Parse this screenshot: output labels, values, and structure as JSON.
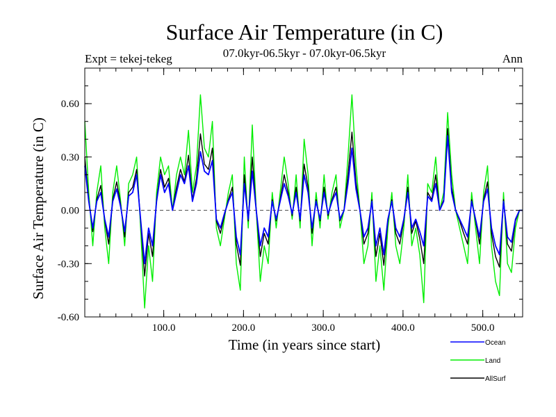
{
  "chart_data": {
    "type": "line",
    "title": "Surface Air Temperature (in C)",
    "subtitle_left": "Expt = tekej-tekeg",
    "subtitle_center": "07.0kyr-06.5kyr - 07.0kyr-06.5kyr",
    "subtitle_right": "Ann",
    "xlabel": "Time (in years since start)",
    "ylabel": "Surface Air Temperature (in C)",
    "xlim": [
      1,
      550
    ],
    "ylim": [
      -0.6,
      0.8
    ],
    "x_ticks": [
      100,
      200,
      300,
      400,
      500
    ],
    "x_tick_labels": [
      "100.0",
      "200.0",
      "300.0",
      "400.0",
      "500.0"
    ],
    "y_ticks": [
      -0.6,
      -0.3,
      0.0,
      0.3,
      0.6
    ],
    "y_tick_labels": [
      "-0.60",
      "-0.30",
      "0.00",
      "0.30",
      "0.60"
    ],
    "zero_line": true,
    "legend_position": "bottom-right",
    "series": [
      {
        "name": "Ocean",
        "color": "#0000ff",
        "x_start": 1,
        "x_step": 5,
        "values": [
          0.25,
          0.05,
          -0.1,
          0.05,
          0.1,
          -0.05,
          -0.15,
          0.05,
          0.12,
          0.02,
          -0.12,
          0.08,
          0.1,
          0.2,
          -0.05,
          -0.3,
          -0.1,
          -0.2,
          0.05,
          0.2,
          0.1,
          0.15,
          0.0,
          0.1,
          0.2,
          0.15,
          0.25,
          0.05,
          0.15,
          0.33,
          0.22,
          0.2,
          0.28,
          -0.05,
          -0.1,
          -0.02,
          0.05,
          0.1,
          -0.15,
          -0.25,
          0.15,
          -0.05,
          0.22,
          0.0,
          -0.2,
          -0.1,
          -0.15,
          0.05,
          -0.05,
          0.05,
          0.15,
          0.08,
          -0.02,
          0.1,
          -0.05,
          0.2,
          0.1,
          -0.1,
          0.05,
          -0.05,
          0.1,
          -0.02,
          0.05,
          0.1,
          -0.05,
          0.0,
          0.15,
          0.35,
          0.12,
          0.0,
          -0.15,
          -0.1,
          0.05,
          -0.2,
          -0.1,
          -0.25,
          -0.05,
          0.05,
          -0.1,
          -0.15,
          -0.05,
          0.1,
          -0.1,
          -0.05,
          -0.12,
          -0.2,
          0.08,
          0.05,
          0.15,
          0.0,
          0.05,
          0.42,
          0.1,
          0.0,
          -0.05,
          -0.1,
          -0.15,
          0.05,
          -0.05,
          -0.15,
          0.05,
          0.12,
          -0.1,
          -0.2,
          -0.25,
          0.05,
          -0.15,
          -0.18,
          -0.05,
          0.0,
          0.0
        ]
      },
      {
        "name": "Land",
        "color": "#00ee00",
        "x_start": 1,
        "x_step": 5,
        "values": [
          0.5,
          0.1,
          -0.2,
          0.1,
          0.25,
          -0.1,
          -0.3,
          0.1,
          0.25,
          0.05,
          -0.2,
          0.15,
          0.2,
          0.3,
          -0.1,
          -0.55,
          -0.2,
          -0.4,
          0.1,
          0.3,
          0.2,
          0.25,
          0.0,
          0.2,
          0.3,
          0.2,
          0.45,
          0.1,
          0.25,
          0.65,
          0.35,
          0.3,
          0.5,
          -0.1,
          -0.2,
          -0.05,
          0.1,
          0.2,
          -0.3,
          -0.45,
          0.3,
          -0.1,
          0.48,
          0.0,
          -0.4,
          -0.2,
          -0.3,
          0.1,
          -0.1,
          0.1,
          0.3,
          0.15,
          -0.05,
          0.2,
          -0.1,
          0.4,
          0.2,
          -0.2,
          0.1,
          -0.1,
          0.2,
          -0.05,
          0.1,
          0.2,
          -0.1,
          0.0,
          0.3,
          0.65,
          0.25,
          0.0,
          -0.3,
          -0.2,
          0.1,
          -0.4,
          -0.2,
          -0.45,
          -0.1,
          0.1,
          -0.2,
          -0.3,
          -0.1,
          0.2,
          -0.2,
          -0.1,
          -0.25,
          -0.52,
          0.15,
          0.1,
          0.3,
          0.0,
          0.1,
          0.55,
          0.2,
          0.0,
          -0.1,
          -0.2,
          -0.3,
          0.1,
          -0.1,
          -0.3,
          0.1,
          0.25,
          -0.2,
          -0.4,
          -0.48,
          0.1,
          -0.3,
          -0.35,
          -0.1,
          0.0,
          0.0
        ]
      },
      {
        "name": "AllSurf",
        "color": "#000000",
        "x_start": 1,
        "x_step": 5,
        "values": [
          0.3,
          0.06,
          -0.12,
          0.06,
          0.14,
          -0.06,
          -0.19,
          0.06,
          0.16,
          0.03,
          -0.15,
          0.1,
          0.13,
          0.23,
          -0.06,
          -0.37,
          -0.13,
          -0.26,
          0.06,
          0.23,
          0.13,
          0.18,
          0.0,
          0.13,
          0.23,
          0.16,
          0.31,
          0.06,
          0.18,
          0.43,
          0.26,
          0.23,
          0.35,
          -0.06,
          -0.13,
          -0.03,
          0.06,
          0.13,
          -0.19,
          -0.31,
          0.2,
          -0.06,
          0.3,
          0.0,
          -0.26,
          -0.13,
          -0.19,
          0.06,
          -0.06,
          0.06,
          0.2,
          0.1,
          -0.03,
          0.13,
          -0.06,
          0.26,
          0.13,
          -0.13,
          0.06,
          -0.06,
          0.13,
          -0.03,
          0.06,
          0.13,
          -0.06,
          0.0,
          0.2,
          0.44,
          0.16,
          0.0,
          -0.19,
          -0.13,
          0.06,
          -0.26,
          -0.13,
          -0.31,
          -0.06,
          0.06,
          -0.13,
          -0.19,
          -0.06,
          0.13,
          -0.13,
          -0.06,
          -0.16,
          -0.3,
          0.1,
          0.06,
          0.2,
          0.0,
          0.06,
          0.46,
          0.13,
          0.0,
          -0.06,
          -0.13,
          -0.19,
          0.06,
          -0.06,
          -0.19,
          0.06,
          0.16,
          -0.13,
          -0.26,
          -0.32,
          0.06,
          -0.19,
          -0.23,
          -0.06,
          0.0,
          0.0
        ]
      }
    ]
  }
}
